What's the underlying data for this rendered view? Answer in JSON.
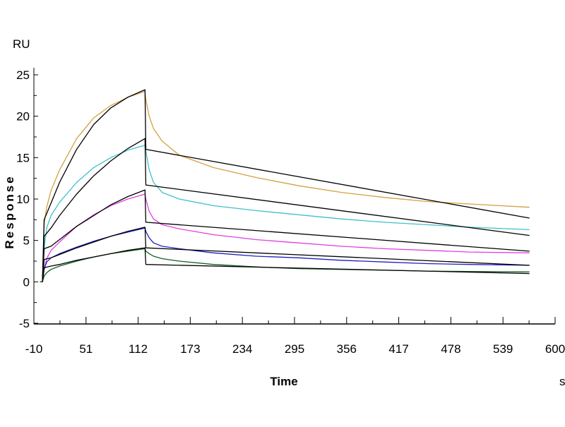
{
  "chart_data": {
    "type": "line",
    "title": "",
    "xlabel": "Time",
    "xunit": "s",
    "ylabel": "Response",
    "yunit": "RU",
    "xlim": [
      -10,
      600
    ],
    "ylim": [
      -5,
      25
    ],
    "xticks": [
      -10,
      51,
      112,
      173,
      234,
      295,
      356,
      417,
      478,
      539,
      600
    ],
    "yticks": [
      -5,
      0,
      5,
      10,
      15,
      20,
      25
    ],
    "grid": false,
    "legend": "none",
    "series": [
      {
        "name": "data-1",
        "color": "#D4A040",
        "kind": "data",
        "t": [
          -3,
          0,
          2,
          5,
          10,
          20,
          40,
          60,
          80,
          100,
          120,
          121,
          125,
          130,
          140,
          160,
          200,
          250,
          300,
          350,
          400,
          450,
          500,
          570
        ],
        "y": [
          0,
          0,
          7,
          9,
          11,
          13.5,
          17.3,
          19.8,
          21.3,
          22.3,
          23,
          22,
          20,
          18.5,
          17,
          15.3,
          13.8,
          12.6,
          11.6,
          10.8,
          10.2,
          9.7,
          9.4,
          9.0
        ]
      },
      {
        "name": "fit-1",
        "color": "#000000",
        "kind": "fit",
        "t": [
          0,
          2,
          10,
          20,
          40,
          60,
          80,
          100,
          120,
          121,
          570
        ],
        "y": [
          0,
          7.5,
          9.5,
          12,
          16,
          19,
          21,
          22.3,
          23.2,
          16,
          7.7
        ]
      },
      {
        "name": "data-2",
        "color": "#40C0C8",
        "kind": "data",
        "t": [
          -3,
          0,
          2,
          5,
          10,
          20,
          40,
          60,
          80,
          100,
          120,
          121,
          125,
          130,
          140,
          160,
          200,
          250,
          300,
          350,
          400,
          450,
          500,
          570
        ],
        "y": [
          0,
          0,
          4,
          6.5,
          8,
          9.6,
          12,
          13.8,
          15,
          15.9,
          16.5,
          15.8,
          13.5,
          12,
          10.8,
          10,
          9.2,
          8.6,
          8.1,
          7.6,
          7.2,
          6.9,
          6.6,
          6.3
        ]
      },
      {
        "name": "fit-2",
        "color": "#000000",
        "kind": "fit",
        "t": [
          0,
          2,
          10,
          20,
          40,
          60,
          80,
          100,
          120,
          121,
          570
        ],
        "y": [
          0,
          5.5,
          6.5,
          8,
          10.6,
          12.8,
          14.6,
          16.1,
          17.3,
          11.7,
          5.6
        ]
      },
      {
        "name": "data-3",
        "color": "#E040E0",
        "kind": "data",
        "t": [
          -3,
          0,
          2,
          5,
          10,
          20,
          40,
          60,
          80,
          100,
          120,
          121,
          125,
          130,
          140,
          160,
          200,
          250,
          300,
          350,
          400,
          450,
          500,
          570
        ],
        "y": [
          0,
          0,
          1.5,
          2.8,
          3.8,
          4.8,
          6.7,
          8.1,
          9.2,
          10,
          10.6,
          10,
          8.5,
          7.6,
          6.9,
          6.4,
          5.7,
          5.1,
          4.7,
          4.3,
          4.0,
          3.8,
          3.6,
          3.5
        ]
      },
      {
        "name": "fit-3",
        "color": "#000000",
        "kind": "fit",
        "t": [
          0,
          2,
          10,
          20,
          40,
          60,
          80,
          100,
          120,
          121,
          570
        ],
        "y": [
          0,
          4,
          4.3,
          5.1,
          6.7,
          8,
          9.3,
          10.3,
          11.1,
          7.2,
          3.7
        ]
      },
      {
        "name": "data-4",
        "color": "#2020C0",
        "kind": "data",
        "t": [
          -3,
          0,
          2,
          5,
          10,
          20,
          40,
          60,
          80,
          100,
          120,
          121,
          125,
          130,
          140,
          160,
          200,
          250,
          300,
          350,
          400,
          450,
          500,
          570
        ],
        "y": [
          0,
          0,
          1.5,
          2.4,
          2.9,
          3.4,
          4.2,
          4.9,
          5.5,
          6.0,
          6.5,
          6.1,
          5.3,
          4.7,
          4.3,
          4.0,
          3.5,
          3.1,
          2.9,
          2.6,
          2.4,
          2.2,
          2.1,
          2.0
        ]
      },
      {
        "name": "fit-4",
        "color": "#000000",
        "kind": "fit",
        "t": [
          0,
          2,
          10,
          20,
          40,
          60,
          80,
          100,
          120,
          121,
          570
        ],
        "y": [
          0,
          2.7,
          2.9,
          3.3,
          4.1,
          4.8,
          5.5,
          6.1,
          6.6,
          4.1,
          2.0
        ]
      },
      {
        "name": "data-5",
        "color": "#106020",
        "kind": "data",
        "t": [
          -3,
          0,
          2,
          5,
          10,
          20,
          40,
          60,
          80,
          100,
          120,
          121,
          125,
          130,
          140,
          160,
          200,
          250,
          300,
          350,
          400,
          450,
          500,
          570
        ],
        "y": [
          0,
          0,
          0.7,
          1.1,
          1.5,
          1.9,
          2.5,
          3.0,
          3.4,
          3.7,
          4.0,
          3.7,
          3.4,
          3.1,
          2.8,
          2.5,
          2.1,
          1.8,
          1.6,
          1.5,
          1.4,
          1.3,
          1.25,
          1.2
        ]
      },
      {
        "name": "fit-5",
        "color": "#000000",
        "kind": "fit",
        "t": [
          0,
          2,
          10,
          20,
          40,
          60,
          80,
          100,
          120,
          121,
          570
        ],
        "y": [
          0,
          1.7,
          1.9,
          2.1,
          2.6,
          3.0,
          3.4,
          3.8,
          4.1,
          2.1,
          1.0
        ]
      }
    ]
  }
}
